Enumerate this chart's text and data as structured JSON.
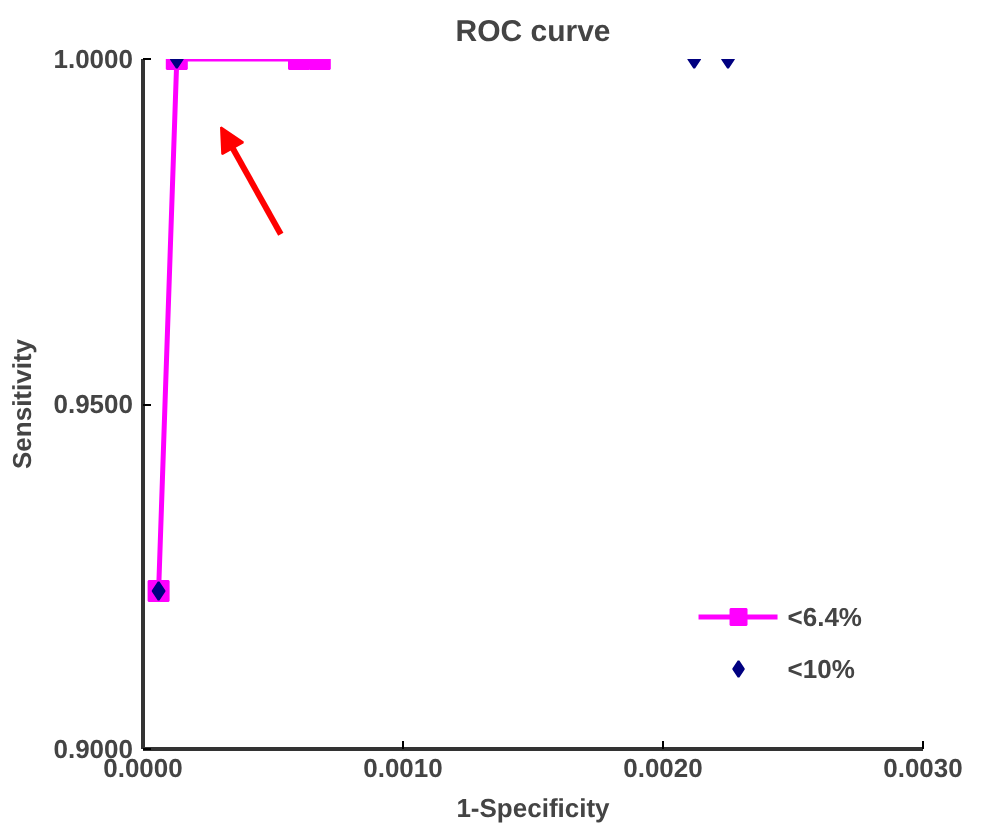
{
  "chart_data": {
    "type": "line",
    "title": "ROC curve",
    "xlabel": "1-Specificity",
    "ylabel": "Sensitivity",
    "xlim": [
      0,
      0.003
    ],
    "ylim": [
      0.9,
      1.0
    ],
    "xticks": [
      {
        "value": 0,
        "label": "0.0000"
      },
      {
        "value": 0.001,
        "label": "0.0010"
      },
      {
        "value": 0.002,
        "label": "0.0020"
      },
      {
        "value": 0.003,
        "label": "0.0030"
      }
    ],
    "yticks": [
      {
        "value": 0.9,
        "label": "0.9000"
      },
      {
        "value": 0.95,
        "label": "0.9500"
      },
      {
        "value": 1.0,
        "label": "1.0000"
      }
    ],
    "series": [
      {
        "name": "<6.4%",
        "marker": "square",
        "color": "#ff00ff",
        "x": [
          6e-05,
          0.00013,
          0.0006,
          0.00068
        ],
        "values": [
          0.9229,
          1.0,
          1.0,
          1.0
        ]
      },
      {
        "name": "<10%",
        "type": "scatter",
        "marker": "diamond",
        "color": "#000080",
        "x": [
          6e-05,
          0.00013,
          0.00212,
          0.00225
        ],
        "values": [
          0.9229,
          1.0,
          1.0,
          1.0
        ]
      }
    ],
    "grid": false,
    "legend": "bottom right"
  }
}
